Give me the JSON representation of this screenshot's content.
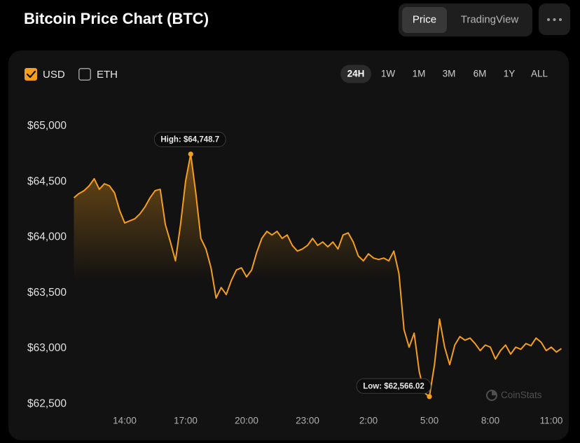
{
  "header": {
    "title": "Bitcoin Price Chart (BTC)",
    "tabs": [
      {
        "label": "Price",
        "selected": true
      },
      {
        "label": "TradingView",
        "selected": false
      }
    ]
  },
  "currencies": [
    {
      "label": "USD",
      "checked": true
    },
    {
      "label": "ETH",
      "checked": false
    }
  ],
  "ranges": [
    "24H",
    "1W",
    "1M",
    "3M",
    "6M",
    "1Y",
    "ALL"
  ],
  "selected_range": 0,
  "watermark": "CoinStats",
  "chart_data": {
    "type": "line",
    "color": "#f59e1b",
    "grid": false,
    "x": [
      "11:30",
      "11:45",
      "12:00",
      "12:15",
      "12:30",
      "12:45",
      "13:00",
      "13:15",
      "13:30",
      "13:45",
      "14:00",
      "14:15",
      "14:30",
      "14:45",
      "15:00",
      "15:15",
      "15:30",
      "15:45",
      "16:00",
      "16:15",
      "16:30",
      "16:45",
      "17:00",
      "17:15",
      "17:30",
      "17:45",
      "18:00",
      "18:15",
      "18:30",
      "18:45",
      "19:00",
      "19:15",
      "19:30",
      "19:45",
      "20:00",
      "20:15",
      "20:30",
      "20:45",
      "21:00",
      "21:15",
      "21:30",
      "21:45",
      "22:00",
      "22:15",
      "22:30",
      "22:45",
      "23:00",
      "23:15",
      "23:30",
      "23:45",
      "0:00",
      "0:15",
      "0:30",
      "0:45",
      "1:00",
      "1:15",
      "1:30",
      "1:45",
      "2:00",
      "2:15",
      "2:30",
      "2:45",
      "3:00",
      "3:15",
      "3:30",
      "3:45",
      "4:00",
      "4:15",
      "4:30",
      "4:45",
      "5:00",
      "5:15",
      "5:30",
      "5:45",
      "6:00",
      "6:15",
      "6:30",
      "6:45",
      "7:00",
      "7:15",
      "7:30",
      "7:45",
      "8:00",
      "8:15",
      "8:30",
      "8:45",
      "9:00",
      "9:15",
      "9:30",
      "9:45",
      "10:00",
      "10:15",
      "10:30",
      "10:45",
      "11:00",
      "11:15",
      "11:30"
    ],
    "values": [
      64356,
      64394,
      64420,
      64463,
      64527,
      64432,
      64482,
      64463,
      64400,
      64242,
      64129,
      64148,
      64167,
      64211,
      64274,
      64356,
      64420,
      64432,
      64116,
      63958,
      63788,
      64116,
      64508,
      64748.7,
      64400,
      63990,
      63895,
      63725,
      63453,
      63548,
      63485,
      63611,
      63706,
      63725,
      63643,
      63706,
      63864,
      63990,
      64053,
      64021,
      64053,
      63990,
      64021,
      63927,
      63876,
      63895,
      63927,
      63990,
      63927,
      63958,
      63914,
      63958,
      63895,
      64021,
      64040,
      63958,
      63832,
      63788,
      63851,
      63813,
      63800,
      63813,
      63788,
      63876,
      63674,
      63169,
      63011,
      63137,
      62790,
      62601,
      62566.02,
      62853,
      63264,
      63011,
      62853,
      63030,
      63106,
      63074,
      63093,
      63043,
      62980,
      63030,
      63011,
      62904,
      62980,
      63030,
      62948,
      63011,
      62992,
      63043,
      63024,
      63093,
      63055,
      62980,
      63011,
      62967,
      62998
    ],
    "xlim": [
      "11:30",
      "11:30"
    ],
    "xticks": [
      "14:00",
      "17:00",
      "20:00",
      "23:00",
      "2:00",
      "5:00",
      "8:00",
      "11:00"
    ],
    "ylim": [
      62400,
      65250
    ],
    "yticks": [
      {
        "value": 62500,
        "label": "$62,500"
      },
      {
        "value": 63000,
        "label": "$63,000"
      },
      {
        "value": 63500,
        "label": "$63,500"
      },
      {
        "value": 64000,
        "label": "$64,000"
      },
      {
        "value": 64500,
        "label": "$64,500"
      },
      {
        "value": 65000,
        "label": "$65,000"
      }
    ],
    "annotations": [
      {
        "label": "High: $64,748.7",
        "value": 64748.7,
        "x": "17:15"
      },
      {
        "label": "Low: $62,566.02",
        "value": 62566.02,
        "x": "5:00"
      }
    ]
  }
}
